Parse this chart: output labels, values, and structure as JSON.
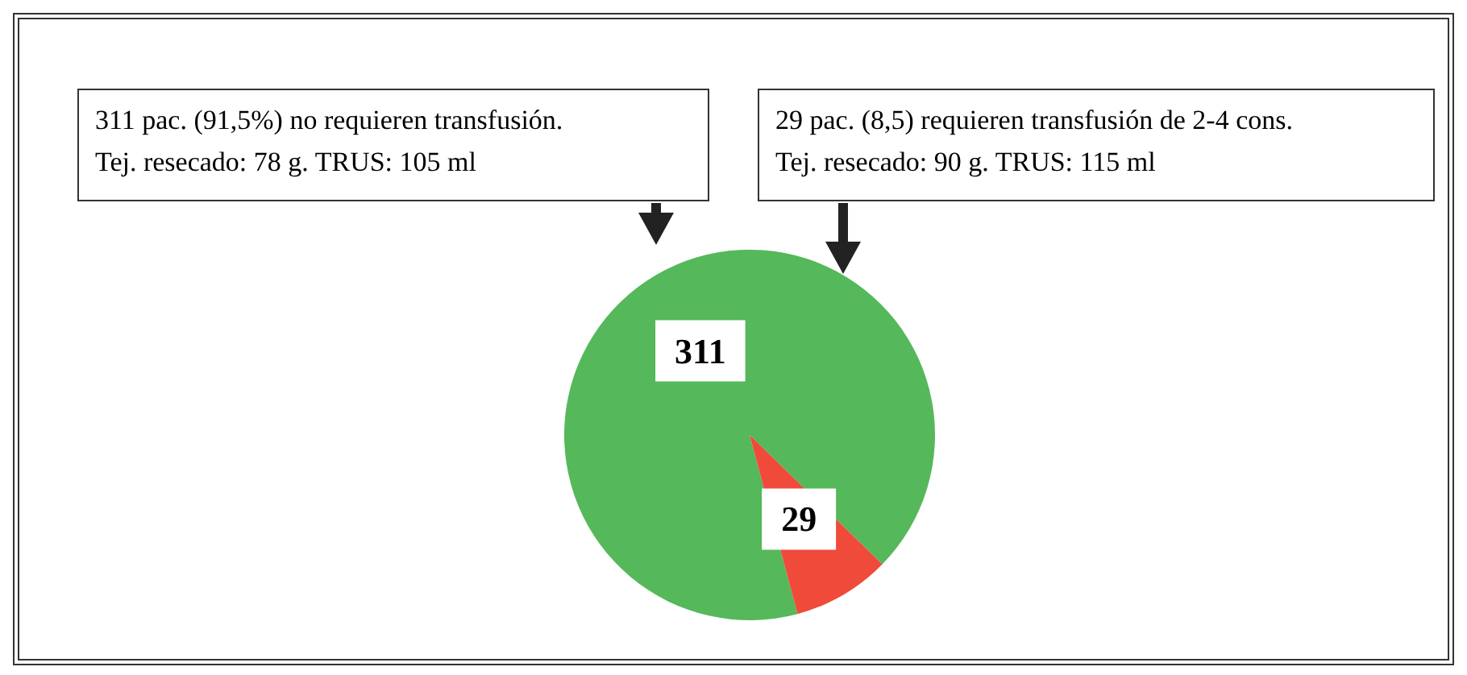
{
  "chart_data": {
    "type": "pie",
    "categories": [
      null,
      null
    ],
    "values": [
      311,
      29
    ],
    "colors": [
      "#55b85a",
      "#f04a3a"
    ],
    "data_labels": true,
    "annotations": [
      "311 pac. (91,5%) no requieren transfusión.\nTej. resecado: 78 g. TRUS: 105 ml",
      "29 pac. (8,5) requieren transfusión de 2-4 cons.\nTej. resecado: 90 g. TRUS: 115 ml"
    ]
  }
}
